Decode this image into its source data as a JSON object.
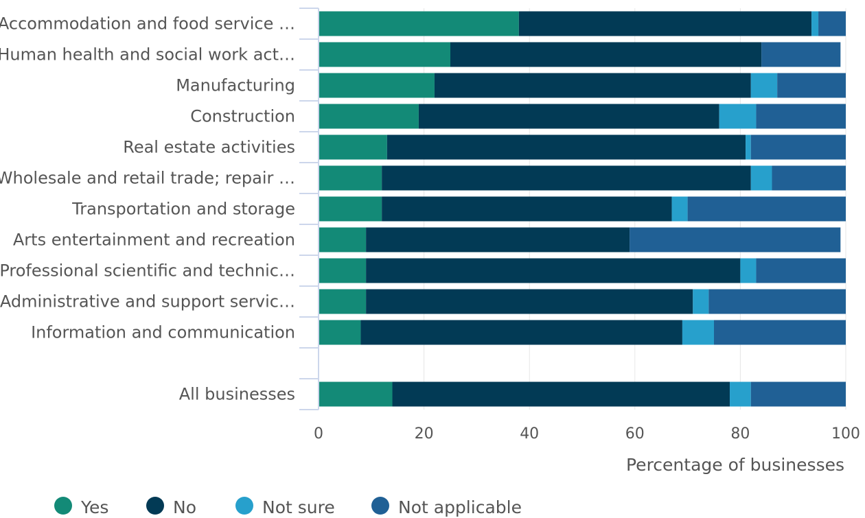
{
  "chart_data": {
    "type": "bar",
    "orientation": "horizontal",
    "stacked": true,
    "categories": [
      "Accommodation and food service …",
      "Human health and social work act…",
      "Manufacturing",
      "Construction",
      "Real estate activities",
      "Wholesale and retail trade; repair …",
      "Transportation and storage",
      "Arts entertainment and recreation",
      "Professional scientific and technic…",
      "Administrative and support servic…",
      "Information and communication",
      "",
      "All businesses"
    ],
    "series": [
      {
        "name": "Yes",
        "color": "#138a77",
        "values": [
          38,
          25,
          22,
          19,
          13,
          12,
          12,
          9,
          9,
          9,
          8,
          null,
          14
        ]
      },
      {
        "name": "No",
        "color": "#023a55",
        "values": [
          55.5,
          59,
          60,
          57,
          68,
          70,
          55,
          50,
          71,
          62,
          61,
          null,
          64
        ]
      },
      {
        "name": "Not sure",
        "color": "#27a0cc",
        "values": [
          1.3,
          0,
          5,
          7,
          1,
          4,
          3,
          0,
          3,
          3,
          6,
          null,
          4
        ]
      },
      {
        "name": "Not applicable",
        "color": "#206095",
        "values": [
          5.2,
          15,
          13,
          17,
          18,
          14,
          30,
          40,
          17,
          26,
          25,
          null,
          18
        ]
      }
    ],
    "x_ticks": [
      0,
      20,
      40,
      60,
      80,
      100
    ],
    "xlim": [
      0,
      100
    ],
    "xlabel": "Percentage of businesses",
    "ylabel": "",
    "title": "",
    "grid": true,
    "legend_position": "bottom-left"
  }
}
